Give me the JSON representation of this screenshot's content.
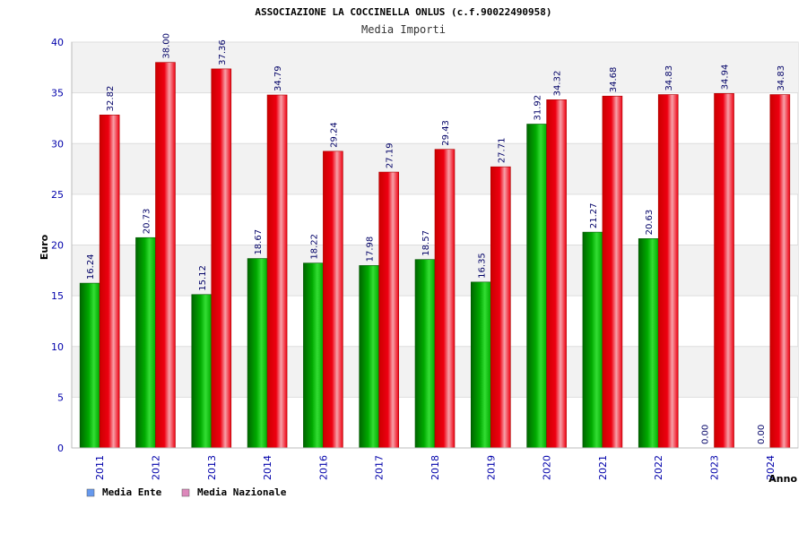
{
  "chart_data": {
    "type": "bar",
    "title": "ASSOCIAZIONE LA COCCINELLA ONLUS (c.f.90022490958)",
    "subtitle": "Media Importi",
    "xlabel": "Anno",
    "ylabel": "Euro",
    "ylim": [
      0,
      40
    ],
    "yticks": [
      "0",
      "5",
      "10",
      "15",
      "20",
      "25",
      "30",
      "35",
      "40"
    ],
    "grid": true,
    "legend_position": "bottom-left",
    "categories": [
      "2011",
      "2012",
      "2013",
      "2014",
      "2016",
      "2017",
      "2018",
      "2019",
      "2020",
      "2021",
      "2022",
      "2023",
      "2024"
    ],
    "series": [
      {
        "name": "Media Ente",
        "legend_color": "#6699ee",
        "bar_color": "#00aa00",
        "values": [
          16.24,
          20.73,
          15.12,
          18.67,
          18.22,
          17.98,
          18.57,
          16.35,
          31.92,
          21.27,
          20.63,
          0.0,
          0.0
        ],
        "value_labels": [
          "16.24",
          "20.73",
          "15.12",
          "18.67",
          "18.22",
          "17.98",
          "18.57",
          "16.35",
          "31.92",
          "21.27",
          "20.63",
          "0.00",
          "0.00"
        ]
      },
      {
        "name": "Media Nazionale",
        "legend_color": "#dd88bb",
        "bar_color": "#ee0011",
        "values": [
          32.82,
          38.0,
          37.36,
          34.79,
          29.24,
          27.19,
          29.43,
          27.71,
          34.32,
          34.68,
          34.83,
          34.94,
          34.83
        ],
        "value_labels": [
          "32.82",
          "38.00",
          "37.36",
          "34.79",
          "29.24",
          "27.19",
          "29.43",
          "27.71",
          "34.32",
          "34.68",
          "34.83",
          "34.94",
          "34.83"
        ]
      }
    ]
  },
  "colors": {
    "axis_text": "#0000aa",
    "value_label": "#000066",
    "band": "#f2f2f2",
    "grid": "#dddddd"
  }
}
